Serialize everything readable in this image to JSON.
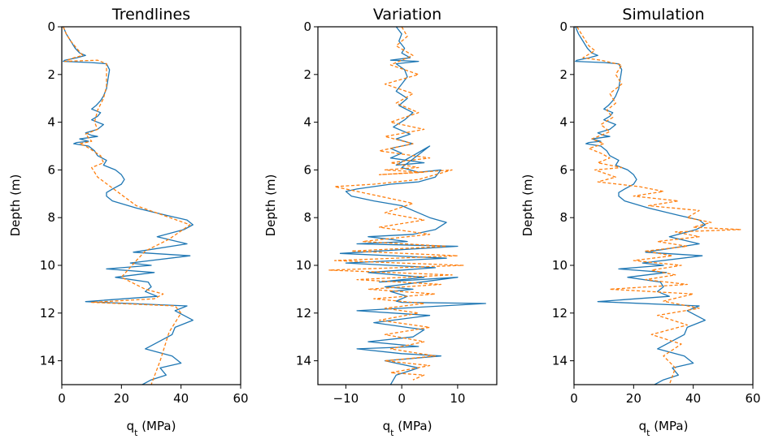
{
  "chart_data": [
    {
      "type": "line",
      "title": "Trendlines",
      "xlabel_main": "q",
      "xlabel_sub": "t",
      "xlabel_unit": " (MPa)",
      "ylabel": "Depth (m)",
      "xlim": [
        0,
        60
      ],
      "ylim": [
        15,
        0
      ],
      "xticks": [
        0,
        20,
        40,
        60
      ],
      "yticks": [
        0,
        2,
        4,
        6,
        8,
        10,
        12,
        14
      ],
      "series": [
        {
          "color": "#1f77b4",
          "dash": "solid",
          "x": [
            0.5,
            1.5,
            3,
            4.5,
            6,
            8,
            5,
            3,
            1,
            0.5,
            10,
            15,
            16,
            15.5,
            15,
            14,
            13,
            11.5,
            10,
            13,
            12,
            10,
            14,
            12,
            8,
            10,
            12,
            6,
            9,
            5,
            4,
            9,
            11,
            12,
            15,
            14,
            18,
            20,
            21,
            20,
            17,
            15,
            15,
            17,
            25,
            35,
            42,
            44,
            41,
            32,
            42,
            24,
            43,
            23,
            30,
            15,
            31,
            18,
            29,
            30,
            28,
            32,
            10,
            8,
            42,
            38,
            44,
            38,
            37,
            28,
            37,
            40,
            33,
            35,
            30,
            27
          ],
          "y": [
            0,
            0.3,
            0.6,
            0.9,
            1.1,
            1.2,
            1.3,
            1.35,
            1.4,
            1.45,
            1.5,
            1.55,
            1.8,
            2.2,
            2.6,
            2.9,
            3.1,
            3.3,
            3.45,
            3.6,
            3.75,
            3.9,
            4.1,
            4.3,
            4.45,
            4.55,
            4.6,
            4.7,
            4.8,
            4.85,
            4.9,
            5.0,
            5.2,
            5.4,
            5.6,
            5.8,
            6.0,
            6.2,
            6.4,
            6.6,
            6.8,
            6.95,
            7.1,
            7.3,
            7.6,
            7.9,
            8.1,
            8.3,
            8.5,
            8.8,
            9.1,
            9.45,
            9.6,
            9.9,
            10.0,
            10.15,
            10.3,
            10.5,
            10.7,
            10.9,
            11.1,
            11.3,
            11.5,
            11.52,
            11.7,
            11.9,
            12.3,
            12.6,
            12.9,
            13.5,
            13.8,
            14.1,
            14.3,
            14.6,
            14.8,
            15.0
          ]
        },
        {
          "color": "#ff7f0e",
          "dash": "dashed",
          "x": [
            0.5,
            1.5,
            3,
            5,
            7,
            4,
            1,
            12,
            15,
            15,
            14,
            12,
            11,
            12,
            8,
            10,
            6,
            8,
            13,
            14,
            10,
            12,
            25,
            43,
            36,
            28,
            25,
            20,
            28,
            34,
            31,
            10,
            38,
            40,
            36,
            33,
            30
          ],
          "y": [
            0,
            0.3,
            0.6,
            0.9,
            1.2,
            1.3,
            1.45,
            1.4,
            1.55,
            2.5,
            3.0,
            3.5,
            4.0,
            4.3,
            4.5,
            4.8,
            4.9,
            5.0,
            5.4,
            5.7,
            5.9,
            6.3,
            7.5,
            8.3,
            8.9,
            9.4,
            9.8,
            10.5,
            11.0,
            11.2,
            11.4,
            11.55,
            11.7,
            12.0,
            12.8,
            14.0,
            15.0
          ]
        }
      ]
    },
    {
      "type": "line",
      "title": "Variation",
      "xlabel_main": "q",
      "xlabel_sub": "t",
      "xlabel_unit": " (MPa)",
      "ylabel": "Depth (m)",
      "xlim": [
        -15,
        17
      ],
      "ylim": [
        15,
        0
      ],
      "xticks": [
        -10,
        0,
        10
      ],
      "xticklabels": [
        "−10",
        "0",
        "10"
      ],
      "yticks": [
        0,
        2,
        4,
        6,
        8,
        10,
        12,
        14
      ],
      "series": [
        {
          "color": "#1f77b4",
          "dash": "solid",
          "x": [
            -1,
            0,
            -0.5,
            0.5,
            0,
            1.5,
            -2,
            3,
            -1,
            0.5,
            1,
            0,
            -1,
            1,
            -0.5,
            2,
            0.5,
            -1.5,
            1.5,
            -1,
            2,
            -2,
            0,
            -2,
            4,
            -1,
            5,
            0,
            3,
            7,
            6,
            3,
            -2,
            -8,
            -10,
            -9,
            -5,
            0,
            3,
            5,
            8,
            6,
            2,
            -6,
            1,
            -8,
            10,
            -11,
            8,
            -10,
            6,
            -6,
            4,
            -4,
            10,
            -3,
            2,
            -2,
            1,
            -1,
            0,
            15,
            -8,
            5,
            -5,
            4,
            2,
            -6,
            3,
            -8,
            0,
            7,
            -3,
            3,
            -1,
            -2
          ],
          "y": [
            0,
            0.3,
            0.6,
            0.9,
            1.1,
            1.3,
            1.4,
            1.45,
            1.55,
            1.8,
            2.1,
            2.4,
            2.7,
            3.0,
            3.3,
            3.6,
            3.9,
            4.2,
            4.5,
            4.7,
            4.9,
            5.1,
            5.3,
            5.5,
            5.7,
            5.8,
            5.0,
            5.9,
            6.1,
            6.0,
            6.3,
            6.5,
            6.6,
            6.8,
            6.9,
            7.1,
            7.3,
            7.5,
            7.8,
            8.0,
            8.2,
            8.5,
            8.7,
            8.8,
            9.0,
            9.1,
            9.2,
            9.5,
            9.7,
            9.9,
            10.1,
            10.3,
            10.5,
            10.7,
            10.5,
            10.9,
            11.0,
            11.1,
            11.3,
            11.5,
            11.55,
            11.6,
            11.9,
            12.1,
            12.4,
            12.7,
            13.0,
            13.2,
            13.4,
            13.5,
            13.7,
            13.8,
            14.0,
            14.3,
            14.6,
            15.0
          ]
        },
        {
          "color": "#ff7f0e",
          "dash": "dashed",
          "x": [
            0,
            1,
            -1,
            2,
            -2,
            3,
            -3,
            2,
            -1,
            3,
            -2,
            4,
            -3,
            2,
            -4,
            5,
            -2,
            3,
            -3,
            4,
            -4,
            6,
            9,
            3,
            -5,
            -12,
            -6,
            2,
            -3,
            4,
            -4,
            5,
            -7,
            8,
            -9,
            10,
            -12,
            11,
            -13,
            9,
            -8,
            7,
            -6,
            6,
            -5,
            4,
            -3,
            3,
            -4,
            5,
            -3,
            4,
            -2,
            6,
            -3,
            5,
            -2,
            4,
            2
          ],
          "y": [
            0,
            0.4,
            0.8,
            1.2,
            1.6,
            2.0,
            2.4,
            2.8,
            3.2,
            3.6,
            4.0,
            4.3,
            4.6,
            4.9,
            5.2,
            5.5,
            5.7,
            5.9,
            6.0,
            6.1,
            6.2,
            6.05,
            6.0,
            6.4,
            6.6,
            6.7,
            7.0,
            7.4,
            7.8,
            8.1,
            8.4,
            8.7,
            9.0,
            9.2,
            9.4,
            9.6,
            9.8,
            10.0,
            10.2,
            10.4,
            10.6,
            10.8,
            11.0,
            11.2,
            11.4,
            11.6,
            11.8,
            12.0,
            12.3,
            12.6,
            12.9,
            13.2,
            13.5,
            13.8,
            14.0,
            14.2,
            14.5,
            14.6,
            14.8
          ]
        }
      ]
    },
    {
      "type": "line",
      "title": "Simulation",
      "xlabel_main": "q",
      "xlabel_sub": "t",
      "xlabel_unit": " (MPa)",
      "ylabel": "Depth (m)",
      "xlim": [
        0,
        60
      ],
      "ylim": [
        15,
        0
      ],
      "xticks": [
        0,
        20,
        40,
        60
      ],
      "yticks": [
        0,
        2,
        4,
        6,
        8,
        10,
        12,
        14
      ],
      "series": [
        {
          "color": "#1f77b4",
          "dash": "solid",
          "x": [
            0.5,
            1.5,
            3,
            4.5,
            6,
            8,
            5,
            3,
            1,
            0.5,
            10,
            15,
            16,
            15.5,
            15,
            14,
            13,
            11.5,
            10,
            13,
            12,
            10,
            14,
            12,
            8,
            10,
            12,
            6,
            9,
            5,
            4,
            9,
            11,
            12,
            15,
            14,
            18,
            20,
            21,
            20,
            17,
            15,
            15,
            17,
            25,
            35,
            42,
            44,
            41,
            32,
            42,
            24,
            43,
            23,
            30,
            15,
            31,
            18,
            29,
            30,
            28,
            32,
            10,
            8,
            42,
            38,
            44,
            38,
            37,
            28,
            37,
            40,
            33,
            35,
            30,
            27
          ],
          "y": [
            0,
            0.3,
            0.6,
            0.9,
            1.1,
            1.2,
            1.3,
            1.35,
            1.4,
            1.45,
            1.5,
            1.55,
            1.8,
            2.2,
            2.6,
            2.9,
            3.1,
            3.3,
            3.45,
            3.6,
            3.75,
            3.9,
            4.1,
            4.3,
            4.45,
            4.55,
            4.6,
            4.7,
            4.8,
            4.85,
            4.9,
            5.0,
            5.2,
            5.4,
            5.6,
            5.8,
            6.0,
            6.2,
            6.4,
            6.6,
            6.8,
            6.95,
            7.1,
            7.3,
            7.6,
            7.9,
            8.1,
            8.3,
            8.5,
            8.8,
            9.1,
            9.45,
            9.6,
            9.9,
            10.0,
            10.15,
            10.3,
            10.5,
            10.7,
            10.9,
            11.1,
            11.3,
            11.5,
            11.52,
            11.7,
            11.9,
            12.3,
            12.6,
            12.9,
            13.5,
            13.8,
            14.1,
            14.3,
            14.6,
            14.8,
            15.0
          ]
        },
        {
          "color": "#ff7f0e",
          "dash": "dashed",
          "x": [
            1,
            3,
            5,
            7,
            3,
            9,
            16,
            14,
            16,
            12,
            14,
            11,
            13,
            9,
            12,
            6,
            10,
            5,
            9,
            12,
            8,
            16,
            7,
            14,
            8,
            22,
            30,
            20,
            35,
            25,
            42,
            38,
            46,
            40,
            56,
            34,
            42,
            28,
            38,
            24,
            33,
            20,
            36,
            26,
            34,
            24,
            38,
            12,
            40,
            30,
            42,
            28,
            38,
            26,
            36,
            30,
            34,
            32
          ],
          "y": [
            0,
            0.4,
            0.8,
            1.0,
            1.3,
            1.4,
            1.6,
            2.0,
            2.4,
            2.8,
            3.2,
            3.5,
            3.8,
            4.1,
            4.4,
            4.7,
            4.9,
            5.1,
            5.3,
            5.5,
            5.7,
            5.9,
            6.0,
            6.3,
            6.5,
            6.7,
            6.9,
            7.1,
            7.3,
            7.5,
            7.7,
            8.0,
            8.2,
            8.4,
            8.5,
            8.6,
            8.8,
            9.0,
            9.2,
            9.4,
            9.6,
            9.8,
            10.0,
            10.2,
            10.4,
            10.6,
            10.8,
            11.0,
            11.2,
            11.5,
            11.8,
            12.1,
            12.5,
            12.9,
            13.3,
            13.8,
            14.3,
            15.0
          ]
        }
      ]
    }
  ]
}
